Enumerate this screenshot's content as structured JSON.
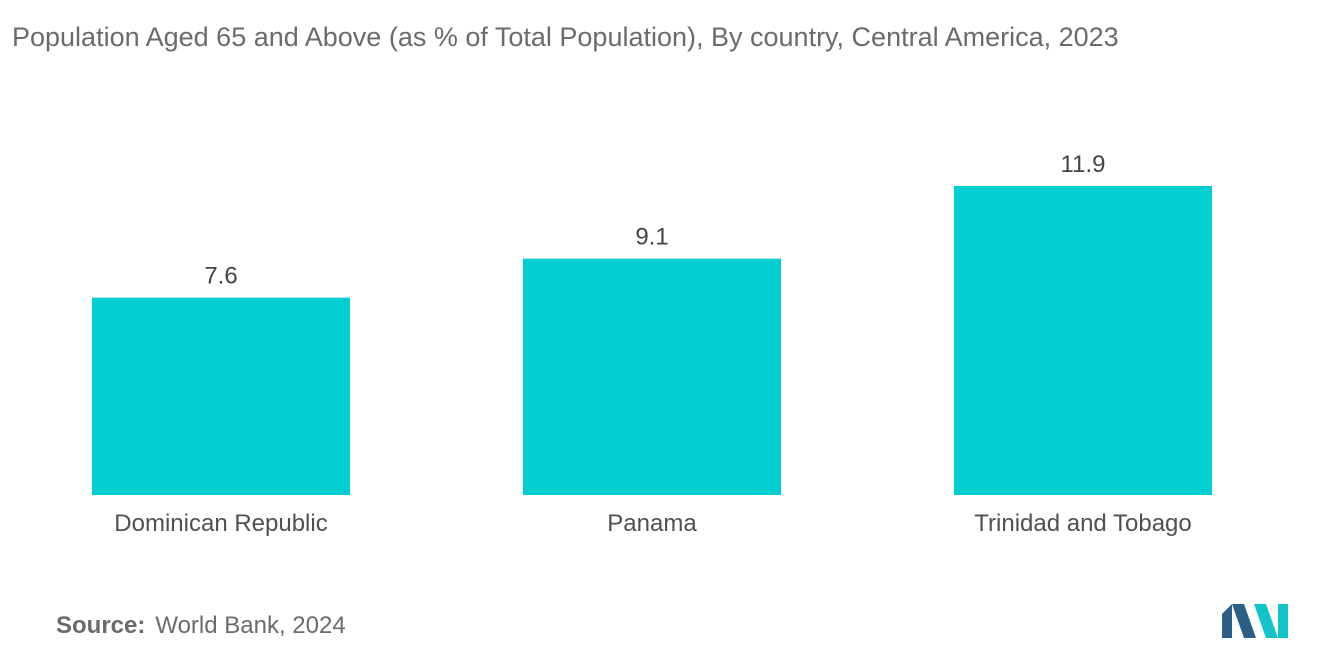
{
  "title": "Population Aged 65 and Above (as % of Total Population), By country, Central America, 2023",
  "source": {
    "label": "Source:",
    "text": "World Bank, 2024"
  },
  "colors": {
    "bar": "#00CED1",
    "logo_dark": "#2a5f86",
    "logo_light": "#12c3c9"
  },
  "chart_data": {
    "type": "bar",
    "categories": [
      "Dominican Republic",
      "Panama",
      "Trinidad and Tobago"
    ],
    "values": [
      7.6,
      9.1,
      11.9
    ],
    "value_labels": [
      "7.6",
      "9.1",
      "11.9"
    ],
    "title": "Population Aged 65 and Above (as % of Total Population), By country, Central America, 2023",
    "xlabel": "",
    "ylabel": "",
    "ylim": [
      0,
      11.9
    ],
    "grid": false,
    "legend": "none"
  }
}
